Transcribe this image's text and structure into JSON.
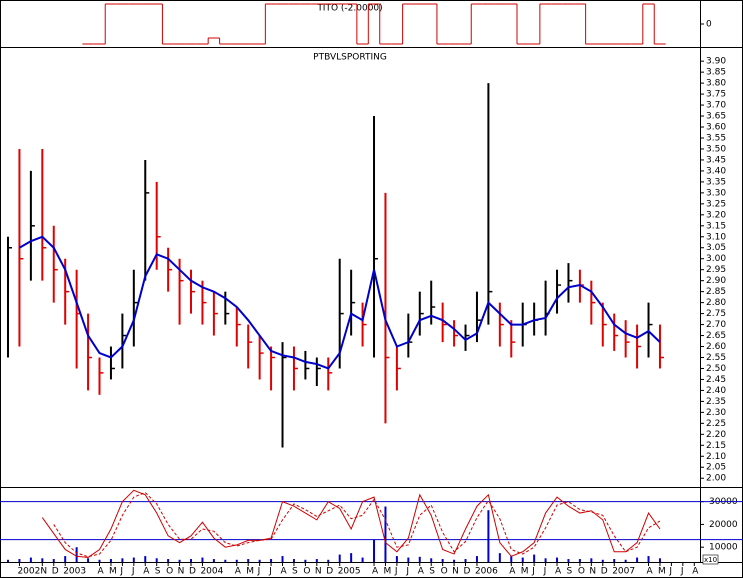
{
  "chart_data": [
    {
      "type": "step",
      "title": "TITO (-2.0000)",
      "color": "#d00000",
      "ylim": [
        -1.15,
        1.2
      ],
      "yticks": [
        0
      ],
      "x": [
        7,
        8,
        9,
        10,
        11,
        12,
        13,
        14,
        15,
        16,
        17,
        18,
        19,
        20,
        21,
        22,
        23,
        24,
        25,
        26,
        27,
        28,
        29,
        30,
        31,
        32,
        33,
        34,
        35,
        36,
        37,
        38,
        39,
        40,
        41,
        42,
        43,
        44,
        45,
        46,
        47,
        48,
        49,
        50,
        51,
        52,
        53,
        54,
        55,
        56,
        57,
        58,
        59,
        60,
        61,
        62,
        63,
        64
      ],
      "values": [
        null,
        null,
        null,
        null,
        null,
        null,
        null,
        -1,
        -1,
        1,
        1,
        1,
        1,
        1,
        -1,
        -1,
        -1,
        -1,
        -0.7,
        -1,
        -1,
        -1,
        -1,
        1,
        1,
        1,
        1,
        1,
        1,
        1,
        1,
        -1,
        1,
        -1,
        -1,
        1,
        1,
        1,
        -1,
        -1,
        -1,
        1,
        1,
        1,
        1,
        -1,
        -1,
        1,
        1,
        1,
        1,
        -1,
        -1,
        -1,
        -1,
        -1,
        1,
        -1
      ]
    },
    {
      "type": "ohlc",
      "title": "PTBVLSPORTING",
      "up_color": "#000000",
      "down_color": "#e00000",
      "xlim": [
        6.3,
        67.5
      ],
      "ylim": [
        1.96,
        3.96
      ],
      "x": [
        7,
        8,
        9,
        10,
        11,
        12,
        13,
        14,
        15,
        16,
        17,
        18,
        19,
        20,
        21,
        22,
        23,
        24,
        25,
        26,
        27,
        28,
        29,
        30,
        31,
        32,
        33,
        34,
        35,
        36,
        37,
        38,
        39,
        40,
        41,
        42,
        43,
        44,
        45,
        46,
        47,
        48,
        49,
        50,
        51,
        52,
        53,
        54,
        55,
        56,
        57,
        58,
        59,
        60,
        61,
        62,
        63,
        64
      ],
      "high": [
        3.1,
        3.5,
        3.4,
        3.5,
        3.15,
        3.0,
        2.95,
        2.75,
        2.55,
        2.6,
        2.75,
        2.95,
        3.45,
        3.35,
        3.05,
        3.0,
        2.95,
        2.9,
        2.85,
        2.85,
        2.78,
        2.7,
        2.65,
        2.6,
        2.62,
        2.6,
        2.58,
        2.55,
        2.55,
        3.0,
        2.95,
        2.8,
        3.65,
        3.3,
        2.6,
        2.75,
        2.85,
        2.9,
        2.8,
        2.72,
        2.7,
        2.85,
        3.8,
        2.8,
        2.72,
        2.8,
        2.8,
        2.9,
        2.95,
        2.98,
        2.95,
        2.9,
        2.8,
        2.75,
        2.72,
        2.7,
        2.8,
        2.7
      ],
      "low": [
        2.55,
        2.6,
        2.9,
        2.9,
        2.8,
        2.7,
        2.5,
        2.4,
        2.38,
        2.45,
        2.5,
        2.6,
        2.9,
        2.95,
        2.85,
        2.7,
        2.75,
        2.7,
        2.65,
        2.7,
        2.6,
        2.5,
        2.45,
        2.4,
        2.14,
        2.4,
        2.45,
        2.42,
        2.4,
        2.5,
        2.65,
        2.6,
        2.55,
        2.25,
        2.4,
        2.55,
        2.65,
        2.7,
        2.62,
        2.6,
        2.58,
        2.62,
        2.7,
        2.6,
        2.55,
        2.6,
        2.65,
        2.65,
        2.75,
        2.8,
        2.8,
        2.7,
        2.6,
        2.58,
        2.55,
        2.5,
        2.55,
        2.5
      ],
      "close": [
        3.05,
        3.0,
        3.15,
        3.05,
        2.95,
        2.85,
        2.75,
        2.55,
        2.48,
        2.5,
        2.65,
        2.8,
        3.3,
        3.1,
        2.95,
        2.9,
        2.85,
        2.8,
        2.75,
        2.75,
        2.7,
        2.62,
        2.57,
        2.55,
        2.55,
        2.5,
        2.5,
        2.5,
        2.48,
        2.75,
        2.8,
        2.7,
        3.0,
        2.55,
        2.5,
        2.62,
        2.75,
        2.78,
        2.7,
        2.65,
        2.65,
        2.72,
        2.85,
        2.7,
        2.62,
        2.7,
        2.72,
        2.75,
        2.88,
        2.9,
        2.88,
        2.8,
        2.7,
        2.65,
        2.62,
        2.6,
        2.7,
        2.55
      ],
      "moving_average": {
        "color": "#0000cc",
        "values": [
          null,
          3.05,
          3.08,
          3.1,
          3.05,
          2.95,
          2.8,
          2.65,
          2.57,
          2.55,
          2.6,
          2.72,
          2.92,
          3.02,
          3.0,
          2.95,
          2.9,
          2.87,
          2.85,
          2.82,
          2.78,
          2.72,
          2.65,
          2.58,
          2.56,
          2.55,
          2.53,
          2.52,
          2.5,
          2.57,
          2.75,
          2.72,
          2.95,
          2.72,
          2.6,
          2.62,
          2.72,
          2.74,
          2.72,
          2.68,
          2.63,
          2.66,
          2.8,
          2.75,
          2.7,
          2.7,
          2.72,
          2.73,
          2.82,
          2.87,
          2.88,
          2.85,
          2.78,
          2.7,
          2.66,
          2.64,
          2.67,
          2.62
        ]
      },
      "yticks": [
        {
          "value": 3.9,
          "label": "3.90"
        },
        {
          "value": 3.85,
          "label": "3.85"
        },
        {
          "value": 3.8,
          "label": "3.80"
        },
        {
          "value": 3.75,
          "label": "3.75"
        },
        {
          "value": 3.7,
          "label": "3.70"
        },
        {
          "value": 3.65,
          "label": "3.65"
        },
        {
          "value": 3.6,
          "label": "3.60"
        },
        {
          "value": 3.55,
          "label": "3.55"
        },
        {
          "value": 3.5,
          "label": "3.50"
        },
        {
          "value": 3.45,
          "label": "3.45"
        },
        {
          "value": 3.4,
          "label": "3.40"
        },
        {
          "value": 3.35,
          "label": "3.35"
        },
        {
          "value": 3.3,
          "label": "3.30"
        },
        {
          "value": 3.25,
          "label": "3.25"
        },
        {
          "value": 3.2,
          "label": "3.20"
        },
        {
          "value": 3.15,
          "label": "3.15"
        },
        {
          "value": 3.1,
          "label": "3.10"
        },
        {
          "value": 3.05,
          "label": "3.05"
        },
        {
          "value": 3.0,
          "label": "3.00"
        },
        {
          "value": 2.95,
          "label": "2.95"
        },
        {
          "value": 2.9,
          "label": "2.90"
        },
        {
          "value": 2.85,
          "label": "2.85"
        },
        {
          "value": 2.8,
          "label": "2.80"
        },
        {
          "value": 2.75,
          "label": "2.75"
        },
        {
          "value": 2.7,
          "label": "2.70"
        },
        {
          "value": 2.65,
          "label": "2.65"
        },
        {
          "value": 2.6,
          "label": "2.60"
        },
        {
          "value": 2.55,
          "label": "2.55"
        },
        {
          "value": 2.5,
          "label": "2.50"
        },
        {
          "value": 2.45,
          "label": "2.45"
        },
        {
          "value": 2.4,
          "label": "2.40"
        },
        {
          "value": 2.35,
          "label": "2.35"
        },
        {
          "value": 2.3,
          "label": "2.30"
        },
        {
          "value": 2.25,
          "label": "2.25"
        },
        {
          "value": 2.2,
          "label": "2.20"
        },
        {
          "value": 2.15,
          "label": "2.15"
        },
        {
          "value": 2.1,
          "label": "2.10"
        },
        {
          "value": 2.05,
          "label": "2.05"
        },
        {
          "value": 2.0,
          "label": "2.00"
        }
      ],
      "xticks": [
        {
          "value": 8,
          "label": "2002"
        },
        {
          "value": 10,
          "label": "N"
        },
        {
          "value": 11,
          "label": "D"
        },
        {
          "value": 12,
          "label": "2003"
        },
        {
          "value": 15,
          "label": "A"
        },
        {
          "value": 16,
          "label": "M"
        },
        {
          "value": 17,
          "label": "J"
        },
        {
          "value": 18,
          "label": "J"
        },
        {
          "value": 19,
          "label": "A"
        },
        {
          "value": 20,
          "label": "S"
        },
        {
          "value": 21,
          "label": "O"
        },
        {
          "value": 22,
          "label": "N"
        },
        {
          "value": 23,
          "label": "D"
        },
        {
          "value": 24,
          "label": "2004"
        },
        {
          "value": 27,
          "label": "A"
        },
        {
          "value": 28,
          "label": "M"
        },
        {
          "value": 29,
          "label": "J"
        },
        {
          "value": 30,
          "label": "J"
        },
        {
          "value": 31,
          "label": "A"
        },
        {
          "value": 32,
          "label": "S"
        },
        {
          "value": 33,
          "label": "O"
        },
        {
          "value": 34,
          "label": "N"
        },
        {
          "value": 35,
          "label": "D"
        },
        {
          "value": 36,
          "label": "2005"
        },
        {
          "value": 39,
          "label": "A"
        },
        {
          "value": 40,
          "label": "M"
        },
        {
          "value": 41,
          "label": "J"
        },
        {
          "value": 42,
          "label": "J"
        },
        {
          "value": 43,
          "label": "A"
        },
        {
          "value": 44,
          "label": "S"
        },
        {
          "value": 45,
          "label": "O"
        },
        {
          "value": 46,
          "label": "N"
        },
        {
          "value": 47,
          "label": "D"
        },
        {
          "value": 48,
          "label": "2006"
        },
        {
          "value": 51,
          "label": "A"
        },
        {
          "value": 52,
          "label": "M"
        },
        {
          "value": 53,
          "label": "J"
        },
        {
          "value": 54,
          "label": "J"
        },
        {
          "value": 55,
          "label": "A"
        },
        {
          "value": 56,
          "label": "S"
        },
        {
          "value": 57,
          "label": "O"
        },
        {
          "value": 58,
          "label": "N"
        },
        {
          "value": 59,
          "label": "D"
        },
        {
          "value": 60,
          "label": "2007"
        },
        {
          "value": 63,
          "label": "A"
        },
        {
          "value": 64,
          "label": "M"
        },
        {
          "value": 65,
          "label": "J"
        },
        {
          "value": 66,
          "label": "J"
        },
        {
          "value": 67,
          "label": "A"
        }
      ]
    },
    {
      "type": "oscillator",
      "ylim": [
        3500,
        36000
      ],
      "yticks": [
        30000,
        20000,
        10000
      ],
      "levels": [
        30000,
        13300
      ],
      "level_color": "#0000cc",
      "volume_unit": "x10",
      "x": [
        7,
        8,
        9,
        10,
        11,
        12,
        13,
        14,
        15,
        16,
        17,
        18,
        19,
        20,
        21,
        22,
        23,
        24,
        25,
        26,
        27,
        28,
        29,
        30,
        31,
        32,
        33,
        34,
        35,
        36,
        37,
        38,
        39,
        40,
        41,
        42,
        43,
        44,
        45,
        46,
        47,
        48,
        49,
        50,
        51,
        52,
        53,
        54,
        55,
        56,
        57,
        58,
        59,
        60,
        61,
        62,
        63,
        64
      ],
      "lines": [
        {
          "color": "#d00000",
          "dash": false,
          "values": [
            null,
            null,
            null,
            23000,
            16000,
            9000,
            6000,
            5500,
            9000,
            18000,
            30000,
            35000,
            33000,
            25000,
            15000,
            12000,
            15000,
            21000,
            14000,
            10000,
            11000,
            13000,
            13000,
            14000,
            30000,
            28000,
            25000,
            22000,
            30000,
            27000,
            18000,
            30000,
            32000,
            12000,
            8000,
            14000,
            33000,
            24000,
            9000,
            7000,
            18000,
            28000,
            33000,
            12000,
            6000,
            8000,
            12000,
            25000,
            32000,
            28000,
            25000,
            26000,
            22000,
            8000,
            8000,
            12000,
            25000,
            18000
          ]
        },
        {
          "color": "#d00000",
          "dash": true,
          "values": [
            null,
            null,
            null,
            null,
            20000,
            12000,
            7500,
            5800,
            7000,
            13000,
            24000,
            32000,
            34000,
            29000,
            20000,
            13500,
            13500,
            18000,
            17000,
            12000,
            10500,
            12000,
            13000,
            13500,
            22000,
            29000,
            26500,
            23500,
            26000,
            28500,
            22500,
            24000,
            31000,
            22000,
            10000,
            11000,
            24000,
            28500,
            16500,
            8000,
            12500,
            23000,
            30500,
            22500,
            9000,
            7000,
            10000,
            18500,
            28500,
            30000,
            26500,
            25500,
            24000,
            15000,
            8000,
            10000,
            18500,
            21500
          ]
        }
      ],
      "volume": {
        "color": "#0000cc",
        "lim": [
          0,
          100
        ],
        "values": [
          3,
          4,
          6,
          5,
          4,
          8,
          20,
          5,
          3,
          4,
          5,
          6,
          8,
          5,
          4,
          3,
          4,
          6,
          4,
          3,
          3,
          4,
          3,
          4,
          8,
          4,
          3,
          4,
          3,
          10,
          12,
          6,
          30,
          75,
          8,
          6,
          7,
          5,
          4,
          3,
          4,
          8,
          70,
          12,
          8,
          6,
          10,
          5,
          6,
          4,
          4,
          5,
          3,
          4,
          3,
          6,
          8,
          5
        ]
      }
    }
  ]
}
